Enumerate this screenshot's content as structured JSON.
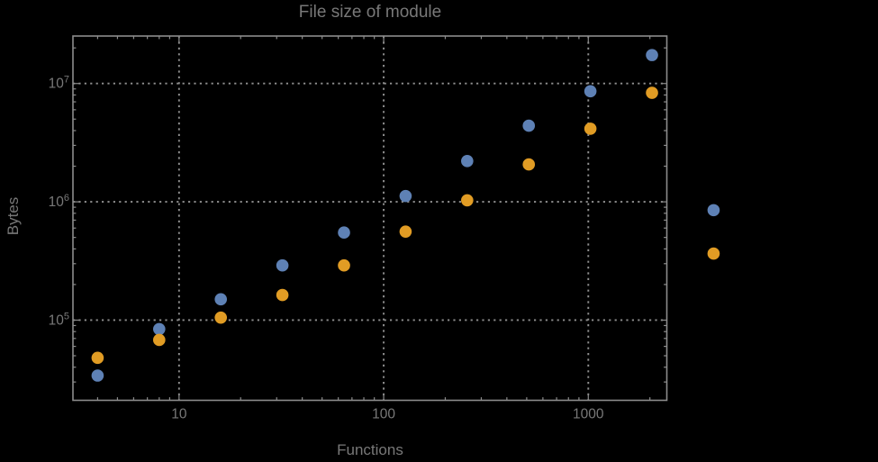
{
  "window": {
    "background": "#000000"
  },
  "colors": {
    "text": "#787878",
    "frame": "#8c8c8c",
    "grid": "#8f8f8f",
    "series1": "#5e81b5",
    "series2": "#e19c24"
  },
  "chart_data": {
    "type": "scatter",
    "title": "File size of module",
    "xlabel": "Functions",
    "ylabel": "Bytes",
    "x_scale": "log",
    "y_scale": "log",
    "xlim": [
      3.03,
      2420
    ],
    "ylim": [
      21000,
      25200000
    ],
    "x_ticks": [
      10,
      100,
      1000
    ],
    "y_tick_exponents": [
      5,
      6,
      7
    ],
    "grid": true,
    "legend": "none",
    "point_radius_px": 6.8,
    "series": [
      {
        "name": "series-1-blue",
        "color": "#5e81b5",
        "points": [
          [
            4,
            34000
          ],
          [
            8,
            84000
          ],
          [
            16,
            150000
          ],
          [
            32,
            290000
          ],
          [
            64,
            550000
          ],
          [
            128,
            1120000
          ],
          [
            256,
            2210000
          ],
          [
            512,
            4400000
          ],
          [
            1024,
            8600000
          ],
          [
            2048,
            17400000
          ],
          [
            4096,
            850000
          ]
        ]
      },
      {
        "name": "series-2-orange",
        "color": "#e19c24",
        "points": [
          [
            4,
            48000
          ],
          [
            8,
            68000
          ],
          [
            16,
            105000
          ],
          [
            32,
            163000
          ],
          [
            64,
            290000
          ],
          [
            128,
            560000
          ],
          [
            256,
            1030000
          ],
          [
            512,
            2070000
          ],
          [
            1024,
            4150000
          ],
          [
            2048,
            8350000
          ],
          [
            4096,
            365000
          ]
        ]
      }
    ]
  }
}
